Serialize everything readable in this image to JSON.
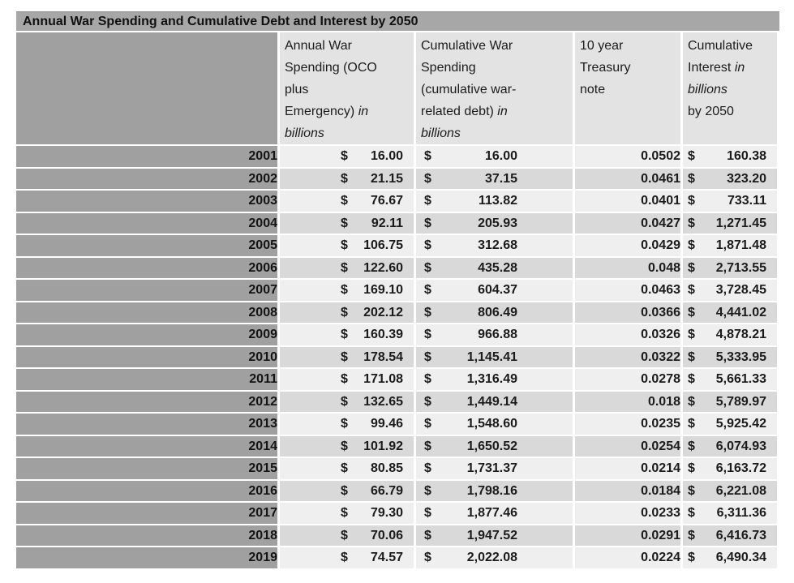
{
  "title": "Annual War Spending and Cumulative Debt and Interest by 2050",
  "currency_symbol": "$",
  "colors": {
    "title_bar": "#a7a7a7",
    "year_column": "#a0a0a0",
    "header_bg": "#e3e3e3",
    "band_light": "#efefef",
    "band_dark": "#d9d9d9",
    "text": "#1b1b1b"
  },
  "table": {
    "headers": [
      {
        "name": "year",
        "segments": []
      },
      {
        "name": "annual-war-spending",
        "segments": [
          {
            "text": "Annual War"
          },
          {
            "text": "Spending (OCO",
            "break_before": true
          },
          {
            "text": "plus",
            "break_before": true
          },
          {
            "text": "Emergency) ",
            "break_before": true
          },
          {
            "text": "in",
            "italic": true
          },
          {
            "text": "billions",
            "italic": true,
            "break_before": true
          }
        ]
      },
      {
        "name": "cumulative-war-spending",
        "segments": [
          {
            "text": "Cumulative War"
          },
          {
            "text": "Spending",
            "break_before": true
          },
          {
            "text": "(cumulative war-",
            "break_before": true
          },
          {
            "text": "related debt) ",
            "break_before": true
          },
          {
            "text": "in",
            "italic": true
          },
          {
            "text": "billions",
            "italic": true,
            "break_before": true
          }
        ]
      },
      {
        "name": "treasury-note",
        "segments": [
          {
            "text": "10 year"
          },
          {
            "text": "Treasury",
            "break_before": true
          },
          {
            "text": "note",
            "break_before": true
          }
        ]
      },
      {
        "name": "cumulative-interest",
        "segments": [
          {
            "text": "Cumulative"
          },
          {
            "text": "Interest ",
            "break_before": true
          },
          {
            "text": "in",
            "italic": true
          },
          {
            "text": "billions",
            "italic": true,
            "break_before": true
          },
          {
            "text": "by 2050",
            "break_before": true
          }
        ]
      }
    ],
    "rows": [
      {
        "year": "2001",
        "annual": "16.00",
        "cumulative": "16.00",
        "treasury": "0.0502",
        "interest": "160.38"
      },
      {
        "year": "2002",
        "annual": "21.15",
        "cumulative": "37.15",
        "treasury": "0.0461",
        "interest": "323.20"
      },
      {
        "year": "2003",
        "annual": "76.67",
        "cumulative": "113.82",
        "treasury": "0.0401",
        "interest": "733.11"
      },
      {
        "year": "2004",
        "annual": "92.11",
        "cumulative": "205.93",
        "treasury": "0.0427",
        "interest": "1,271.45"
      },
      {
        "year": "2005",
        "annual": "106.75",
        "cumulative": "312.68",
        "treasury": "0.0429",
        "interest": "1,871.48"
      },
      {
        "year": "2006",
        "annual": "122.60",
        "cumulative": "435.28",
        "treasury": "0.048",
        "interest": "2,713.55"
      },
      {
        "year": "2007",
        "annual": "169.10",
        "cumulative": "604.37",
        "treasury": "0.0463",
        "interest": "3,728.45"
      },
      {
        "year": "2008",
        "annual": "202.12",
        "cumulative": "806.49",
        "treasury": "0.0366",
        "interest": "4,441.02"
      },
      {
        "year": "2009",
        "annual": "160.39",
        "cumulative": "966.88",
        "treasury": "0.0326",
        "interest": "4,878.21"
      },
      {
        "year": "2010",
        "annual": "178.54",
        "cumulative": "1,145.41",
        "treasury": "0.0322",
        "interest": "5,333.95"
      },
      {
        "year": "2011",
        "annual": "171.08",
        "cumulative": "1,316.49",
        "treasury": "0.0278",
        "interest": "5,661.33"
      },
      {
        "year": "2012",
        "annual": "132.65",
        "cumulative": "1,449.14",
        "treasury": "0.018",
        "interest": "5,789.97"
      },
      {
        "year": "2013",
        "annual": "99.46",
        "cumulative": "1,548.60",
        "treasury": "0.0235",
        "interest": "5,925.42"
      },
      {
        "year": "2014",
        "annual": "101.92",
        "cumulative": "1,650.52",
        "treasury": "0.0254",
        "interest": "6,074.93"
      },
      {
        "year": "2015",
        "annual": "80.85",
        "cumulative": "1,731.37",
        "treasury": "0.0214",
        "interest": "6,163.72"
      },
      {
        "year": "2016",
        "annual": "66.79",
        "cumulative": "1,798.16",
        "treasury": "0.0184",
        "interest": "6,221.08"
      },
      {
        "year": "2017",
        "annual": "79.30",
        "cumulative": "1,877.46",
        "treasury": "0.0233",
        "interest": "6,311.36"
      },
      {
        "year": "2018",
        "annual": "70.06",
        "cumulative": "1,947.52",
        "treasury": "0.0291",
        "interest": "6,416.73"
      },
      {
        "year": "2019",
        "annual": "74.57",
        "cumulative": "2,022.08",
        "treasury": "0.0224",
        "interest": "6,490.34"
      }
    ]
  }
}
